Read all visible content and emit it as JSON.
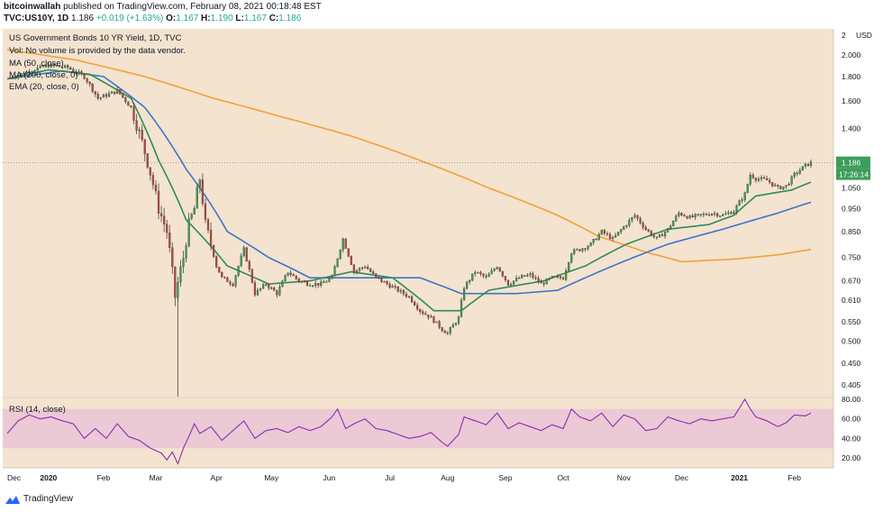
{
  "header": {
    "author": "bitcoinwallah",
    "published": "published on TradingView.com, February 08, 2021 00:18:48 EST",
    "symbol": "TVC:US10Y, 1D",
    "last": "1.186",
    "change": "+0.019 (+1.63%)",
    "o_label": "O:",
    "o": "1.167",
    "h_label": "H:",
    "h": "1.190",
    "l_label": "L:",
    "l": "1.167",
    "c_label": "C:",
    "c": "1.186"
  },
  "legend": {
    "title": "US Government Bonds 10 YR Yield, 1D, TVC",
    "vol": "Vol: No volume is provided by the data vendor.",
    "ma50": "MA (50, close)",
    "ma200": "MA (200, close, 0)",
    "ema": "EMA (20, close, 0)",
    "rsi": "RSI (14, close)"
  },
  "colors": {
    "background": "#f3e3cf",
    "up": "#3f9a4e",
    "down": "#b5483d",
    "ma50": "#3f74c9",
    "ma200": "#f4a03a",
    "ema20": "#2e8b5a",
    "rsi": "#8a2fb0",
    "rsi_band": "#e9c2d6",
    "label_green": "#3e9d5b"
  },
  "footer": {
    "brand": "TradingView",
    "icon": "tradingview-logo-icon"
  },
  "chart_data": [
    {
      "type": "candlestick",
      "title": "US Government Bonds 10 YR Yield, 1D, TVC",
      "price_scale": "log",
      "currency": "USD",
      "y_ticks": [
        "2",
        "2.000",
        "1.800",
        "1.600",
        "1.400",
        "1.186",
        "1.050",
        "0.950",
        "0.850",
        "0.750",
        "0.670",
        "0.610",
        "0.550",
        "0.500",
        "0.450",
        "0.405"
      ],
      "y_tick_values": [
        2.19,
        2.0,
        1.8,
        1.6,
        1.4,
        1.186,
        1.05,
        0.95,
        0.85,
        0.75,
        0.67,
        0.61,
        0.55,
        0.5,
        0.45,
        0.405
      ],
      "x_ticks": [
        "Dec",
        "2020",
        "Feb",
        "Mar",
        "Apr",
        "May",
        "Jun",
        "Jul",
        "Aug",
        "Sep",
        "Oct",
        "Nov",
        "Dec",
        "2021",
        "Feb"
      ],
      "x_tick_index": [
        0,
        15,
        35,
        54,
        76,
        96,
        117,
        139,
        160,
        181,
        202,
        224,
        245,
        266,
        286
      ],
      "last_price": "1.186",
      "countdown": "17:26:14",
      "approx_close_path": [
        [
          0,
          1.78
        ],
        [
          8,
          1.85
        ],
        [
          15,
          1.9
        ],
        [
          22,
          1.88
        ],
        [
          28,
          1.8
        ],
        [
          33,
          1.62
        ],
        [
          40,
          1.68
        ],
        [
          45,
          1.55
        ],
        [
          50,
          1.25
        ],
        [
          55,
          0.95
        ],
        [
          58,
          0.85
        ],
        [
          61,
          0.62
        ],
        [
          64,
          0.75
        ],
        [
          66,
          0.88
        ],
        [
          68,
          0.95
        ],
        [
          70,
          1.1
        ],
        [
          72,
          0.88
        ],
        [
          74,
          0.8
        ],
        [
          76,
          0.72
        ],
        [
          78,
          0.68
        ],
        [
          82,
          0.66
        ],
        [
          86,
          0.78
        ],
        [
          90,
          0.63
        ],
        [
          94,
          0.66
        ],
        [
          98,
          0.63
        ],
        [
          102,
          0.7
        ],
        [
          106,
          0.67
        ],
        [
          110,
          0.66
        ],
        [
          114,
          0.66
        ],
        [
          118,
          0.68
        ],
        [
          122,
          0.82
        ],
        [
          126,
          0.7
        ],
        [
          130,
          0.72
        ],
        [
          134,
          0.68
        ],
        [
          138,
          0.66
        ],
        [
          142,
          0.64
        ],
        [
          146,
          0.62
        ],
        [
          150,
          0.58
        ],
        [
          154,
          0.56
        ],
        [
          158,
          0.53
        ],
        [
          160,
          0.52
        ],
        [
          164,
          0.56
        ],
        [
          166,
          0.65
        ],
        [
          170,
          0.7
        ],
        [
          174,
          0.68
        ],
        [
          178,
          0.72
        ],
        [
          182,
          0.66
        ],
        [
          186,
          0.68
        ],
        [
          190,
          0.69
        ],
        [
          194,
          0.66
        ],
        [
          198,
          0.68
        ],
        [
          202,
          0.68
        ],
        [
          205,
          0.77
        ],
        [
          208,
          0.78
        ],
        [
          212,
          0.8
        ],
        [
          216,
          0.85
        ],
        [
          220,
          0.82
        ],
        [
          224,
          0.87
        ],
        [
          228,
          0.92
        ],
        [
          232,
          0.86
        ],
        [
          236,
          0.82
        ],
        [
          240,
          0.86
        ],
        [
          244,
          0.93
        ],
        [
          248,
          0.91
        ],
        [
          252,
          0.92
        ],
        [
          256,
          0.93
        ],
        [
          260,
          0.92
        ],
        [
          264,
          0.94
        ],
        [
          268,
          1.02
        ],
        [
          270,
          1.12
        ],
        [
          272,
          1.1
        ],
        [
          276,
          1.09
        ],
        [
          280,
          1.05
        ],
        [
          283,
          1.06
        ],
        [
          286,
          1.12
        ],
        [
          290,
          1.17
        ],
        [
          292,
          1.186
        ]
      ],
      "series": [
        {
          "name": "MA (50, close)",
          "approx_path": [
            [
              0,
              1.78
            ],
            [
              20,
              1.85
            ],
            [
              35,
              1.8
            ],
            [
              50,
              1.55
            ],
            [
              65,
              1.15
            ],
            [
              80,
              0.85
            ],
            [
              95,
              0.75
            ],
            [
              110,
              0.68
            ],
            [
              130,
              0.68
            ],
            [
              150,
              0.68
            ],
            [
              165,
              0.63
            ],
            [
              185,
              0.63
            ],
            [
              200,
              0.64
            ],
            [
              220,
              0.72
            ],
            [
              240,
              0.8
            ],
            [
              260,
              0.86
            ],
            [
              280,
              0.93
            ],
            [
              292,
              0.98
            ]
          ]
        },
        {
          "name": "MA (200, close, 0)",
          "approx_path": [
            [
              0,
              2.05
            ],
            [
              25,
              1.95
            ],
            [
              50,
              1.8
            ],
            [
              75,
              1.62
            ],
            [
              100,
              1.48
            ],
            [
              125,
              1.35
            ],
            [
              150,
              1.2
            ],
            [
              175,
              1.05
            ],
            [
              200,
              0.92
            ],
            [
              215,
              0.83
            ],
            [
              232,
              0.77
            ],
            [
              245,
              0.735
            ],
            [
              255,
              0.74
            ],
            [
              265,
              0.745
            ],
            [
              280,
              0.76
            ],
            [
              292,
              0.78
            ]
          ]
        },
        {
          "name": "EMA (20, close, 0)",
          "approx_path": [
            [
              0,
              1.78
            ],
            [
              15,
              1.86
            ],
            [
              30,
              1.82
            ],
            [
              45,
              1.62
            ],
            [
              55,
              1.2
            ],
            [
              65,
              0.9
            ],
            [
              80,
              0.72
            ],
            [
              95,
              0.66
            ],
            [
              110,
              0.67
            ],
            [
              125,
              0.7
            ],
            [
              140,
              0.68
            ],
            [
              155,
              0.58
            ],
            [
              165,
              0.58
            ],
            [
              175,
              0.64
            ],
            [
              195,
              0.67
            ],
            [
              210,
              0.72
            ],
            [
              225,
              0.8
            ],
            [
              240,
              0.86
            ],
            [
              255,
              0.88
            ],
            [
              264,
              0.92
            ],
            [
              272,
              1.01
            ],
            [
              285,
              1.04
            ],
            [
              292,
              1.08
            ]
          ]
        }
      ]
    },
    {
      "type": "line",
      "title": "RSI (14, close)",
      "y_ticks": [
        "80.00",
        "60.00",
        "40.00",
        "20.00"
      ],
      "y_tick_values": [
        80,
        60,
        40,
        20
      ],
      "band": [
        30,
        70
      ],
      "approx_path": [
        [
          0,
          45
        ],
        [
          4,
          58
        ],
        [
          8,
          64
        ],
        [
          12,
          60
        ],
        [
          16,
          62
        ],
        [
          20,
          58
        ],
        [
          24,
          55
        ],
        [
          28,
          40
        ],
        [
          32,
          50
        ],
        [
          36,
          40
        ],
        [
          40,
          55
        ],
        [
          44,
          42
        ],
        [
          48,
          38
        ],
        [
          52,
          30
        ],
        [
          56,
          25
        ],
        [
          58,
          18
        ],
        [
          60,
          26
        ],
        [
          62,
          14
        ],
        [
          64,
          30
        ],
        [
          66,
          42
        ],
        [
          68,
          55
        ],
        [
          70,
          45
        ],
        [
          74,
          52
        ],
        [
          78,
          38
        ],
        [
          82,
          48
        ],
        [
          86,
          58
        ],
        [
          90,
          40
        ],
        [
          94,
          48
        ],
        [
          98,
          50
        ],
        [
          102,
          46
        ],
        [
          106,
          52
        ],
        [
          110,
          48
        ],
        [
          114,
          52
        ],
        [
          118,
          62
        ],
        [
          120,
          70
        ],
        [
          123,
          50
        ],
        [
          126,
          55
        ],
        [
          130,
          60
        ],
        [
          134,
          50
        ],
        [
          138,
          48
        ],
        [
          142,
          44
        ],
        [
          146,
          40
        ],
        [
          150,
          42
        ],
        [
          154,
          46
        ],
        [
          158,
          36
        ],
        [
          160,
          32
        ],
        [
          164,
          44
        ],
        [
          166,
          62
        ],
        [
          170,
          58
        ],
        [
          174,
          54
        ],
        [
          178,
          66
        ],
        [
          182,
          50
        ],
        [
          186,
          56
        ],
        [
          190,
          52
        ],
        [
          194,
          48
        ],
        [
          198,
          54
        ],
        [
          202,
          50
        ],
        [
          205,
          70
        ],
        [
          208,
          62
        ],
        [
          212,
          58
        ],
        [
          216,
          66
        ],
        [
          220,
          52
        ],
        [
          224,
          64
        ],
        [
          228,
          60
        ],
        [
          232,
          48
        ],
        [
          236,
          50
        ],
        [
          240,
          62
        ],
        [
          244,
          58
        ],
        [
          248,
          55
        ],
        [
          252,
          60
        ],
        [
          256,
          58
        ],
        [
          260,
          60
        ],
        [
          264,
          62
        ],
        [
          268,
          80
        ],
        [
          270,
          70
        ],
        [
          272,
          62
        ],
        [
          276,
          58
        ],
        [
          280,
          52
        ],
        [
          283,
          56
        ],
        [
          286,
          64
        ],
        [
          290,
          63
        ],
        [
          292,
          66
        ]
      ]
    }
  ]
}
